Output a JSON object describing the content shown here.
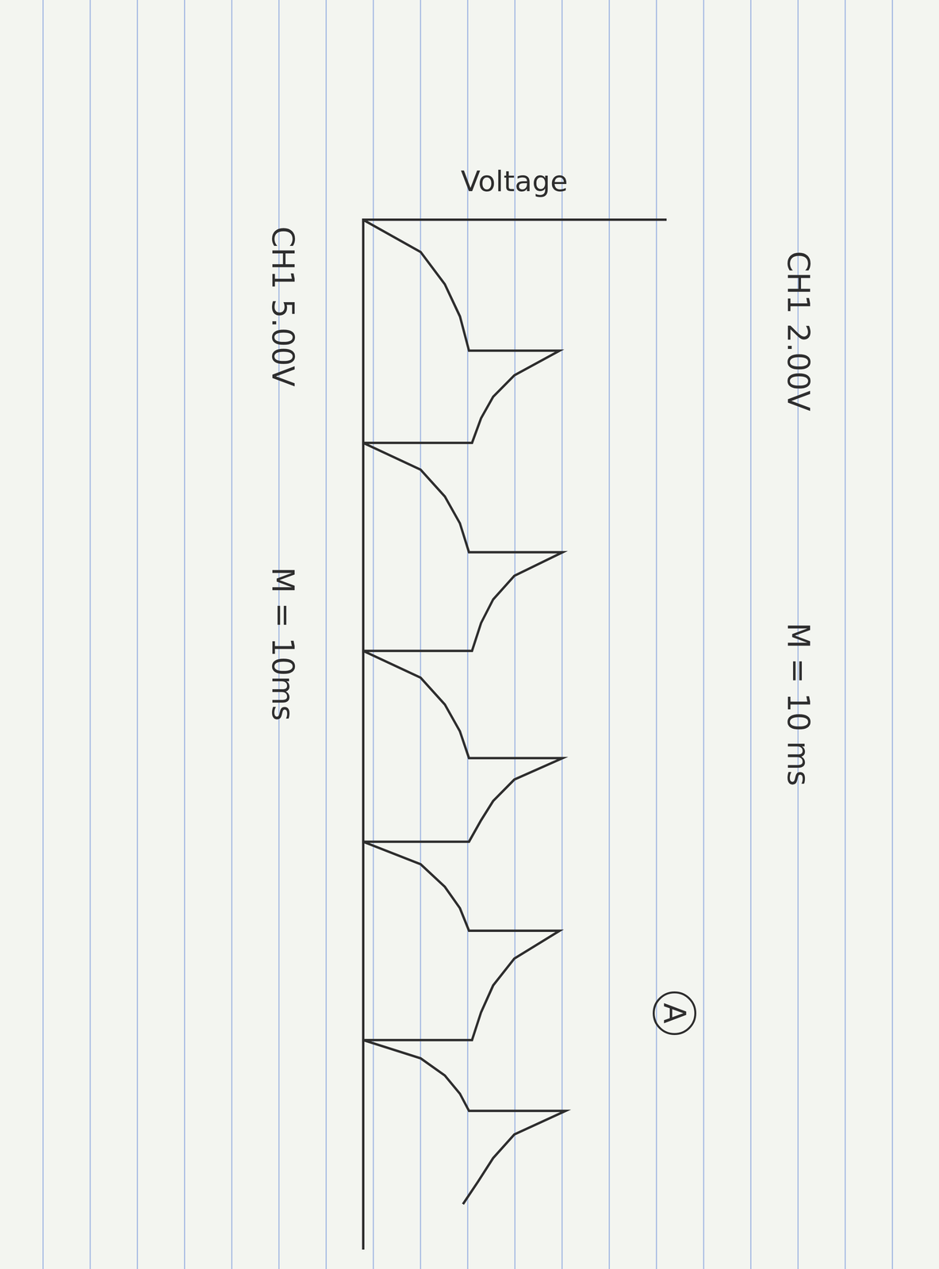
{
  "chart_data": {
    "type": "line",
    "ylabel": "Voltage",
    "x": [
      0,
      3,
      6,
      9,
      12.2,
      12.2,
      14.5,
      16.5,
      18.5,
      20.8,
      20.8,
      23.3,
      25.8,
      28.3,
      31.0,
      31.0,
      33.2,
      35.4,
      37.6,
      40.2,
      40.2,
      42.7,
      45.2,
      47.7,
      50.2,
      50.2,
      52.2,
      54.2,
      56.0,
      58.0,
      58.0,
      60.1,
      62.2,
      64.2,
      66.3,
      66.3,
      68.9,
      71.4,
      73.9,
      76.5,
      76.5,
      78.2,
      79.8,
      81.5,
      83.1,
      83.1,
      85.3,
      87.5,
      89.7,
      91.8
    ],
    "values": [
      0,
      1.9,
      2.7,
      3.2,
      3.5,
      6.5,
      5.0,
      4.3,
      3.9,
      3.6,
      0,
      1.9,
      2.7,
      3.2,
      3.5,
      6.6,
      5.0,
      4.3,
      3.9,
      3.6,
      0,
      1.9,
      2.7,
      3.2,
      3.5,
      6.6,
      5.0,
      4.3,
      3.9,
      3.5,
      0,
      1.9,
      2.7,
      3.2,
      3.5,
      6.5,
      5.0,
      4.3,
      3.9,
      3.6,
      0,
      1.9,
      2.7,
      3.2,
      3.5,
      6.7,
      5.0,
      4.3,
      3.8,
      3.3
    ],
    "color": "#2e2e2e",
    "xlim": [
      0,
      96
    ],
    "ylim": [
      0,
      10
    ],
    "grid": false,
    "tick_labels": false,
    "annotations": [
      "CH1 5.00V",
      "M = 10ms",
      "CH1 2.00V",
      "M = 10 ms",
      "A"
    ]
  }
}
